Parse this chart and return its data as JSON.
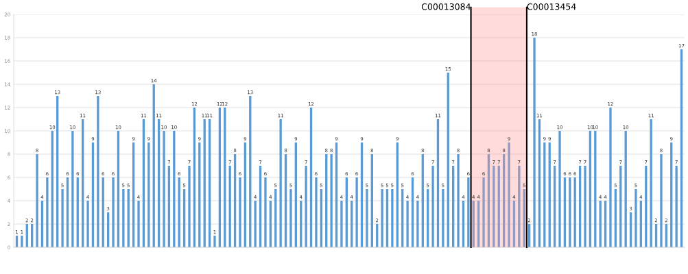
{
  "chart_data": {
    "type": "bar",
    "categories": [
      null,
      null,
      null,
      null,
      null,
      null,
      null,
      null,
      null,
      null,
      null,
      null,
      null,
      null,
      null,
      null,
      null,
      null,
      null,
      null,
      null,
      null,
      null,
      null,
      null,
      null,
      null,
      null,
      null,
      null,
      null,
      null,
      null,
      null,
      null,
      null,
      null,
      null,
      null,
      null,
      null,
      null,
      null,
      null,
      null,
      null,
      null,
      null,
      null,
      null,
      null,
      null,
      null,
      null,
      null,
      null,
      null,
      null,
      null,
      null,
      null,
      null,
      null,
      null,
      null,
      null,
      null,
      null,
      null,
      null,
      null,
      null,
      null,
      null,
      null,
      null,
      null,
      null,
      null,
      null,
      null,
      null,
      null,
      null,
      null,
      null,
      null,
      null,
      null,
      null,
      null,
      null,
      null,
      null,
      null,
      null,
      null,
      null,
      null,
      null,
      null,
      null,
      null,
      null,
      null,
      null,
      null,
      null,
      null,
      null,
      null,
      null,
      null,
      null,
      null,
      null,
      null,
      null,
      null,
      null,
      null,
      null,
      null,
      null,
      null,
      null,
      null,
      null,
      null,
      null,
      null,
      null
    ],
    "values": [
      1,
      1,
      2,
      2,
      8,
      4,
      6,
      10,
      13,
      5,
      6,
      10,
      6,
      11,
      4,
      9,
      13,
      6,
      3,
      6,
      10,
      5,
      5,
      9,
      4,
      11,
      9,
      14,
      11,
      10,
      7,
      10,
      6,
      5,
      7,
      12,
      9,
      11,
      11,
      1,
      12,
      12,
      7,
      8,
      6,
      9,
      13,
      4,
      7,
      6,
      4,
      5,
      11,
      8,
      5,
      9,
      4,
      7,
      12,
      6,
      5,
      8,
      8,
      9,
      4,
      6,
      4,
      6,
      9,
      5,
      8,
      2,
      5,
      5,
      5,
      9,
      5,
      4,
      6,
      4,
      8,
      5,
      7,
      11,
      5,
      15,
      7,
      8,
      4,
      6,
      4,
      4,
      6,
      8,
      7,
      7,
      8,
      9,
      4,
      7,
      5,
      2,
      18,
      11,
      9,
      9,
      7,
      10,
      6,
      6,
      6,
      7,
      7,
      10,
      10,
      4,
      4,
      12,
      5,
      7,
      10,
      3,
      5,
      4,
      7,
      11,
      2,
      8,
      2,
      9,
      7,
      17
    ],
    "color": "#5b9bd5",
    "ylim": [
      0,
      20
    ],
    "yticks": [
      0,
      2,
      4,
      6,
      8,
      10,
      12,
      14,
      16,
      18,
      20
    ],
    "grid": "y",
    "data_labels": true,
    "tick_labels": "y",
    "annotations": [
      "C00013084",
      "C00013454"
    ]
  }
}
